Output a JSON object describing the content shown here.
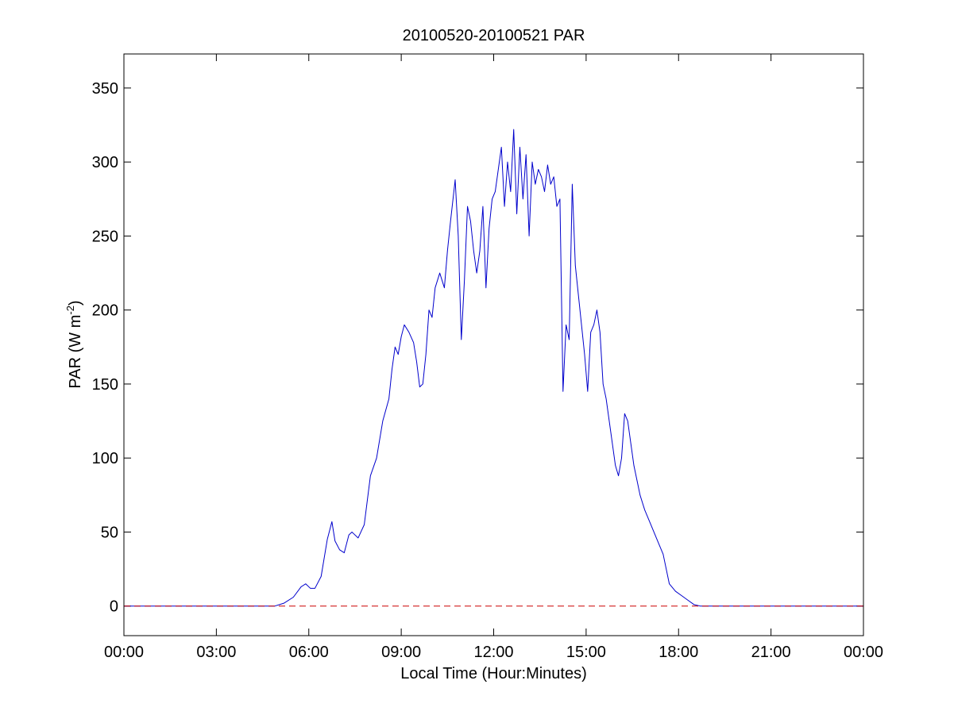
{
  "chart_data": {
    "type": "line",
    "title": "20100520-20100521 PAR",
    "xlabel": "Local Time (Hour:Minutes)",
    "ylabel": "PAR (W m",
    "ylabel_superscript": "-2",
    "ylabel_close": ")",
    "xlim": [
      0,
      24
    ],
    "ylim": [
      -20,
      373
    ],
    "x_ticks": [
      0,
      3,
      6,
      9,
      12,
      15,
      18,
      21,
      24
    ],
    "x_tick_labels": [
      "00:00",
      "03:00",
      "06:00",
      "09:00",
      "12:00",
      "15:00",
      "18:00",
      "21:00",
      "00:00"
    ],
    "y_ticks": [
      0,
      50,
      100,
      150,
      200,
      250,
      300,
      350
    ],
    "y_tick_labels": [
      "0",
      "50",
      "100",
      "150",
      "200",
      "250",
      "300",
      "350"
    ],
    "grid": false,
    "series": [
      {
        "color": "#0000cc",
        "style": "solid",
        "x_unit": "hours",
        "x": [
          0,
          4.9,
          5.2,
          5.5,
          5.75,
          5.9,
          6.05,
          6.2,
          6.4,
          6.6,
          6.75,
          6.85,
          7.0,
          7.15,
          7.3,
          7.4,
          7.6,
          7.8,
          8.0,
          8.2,
          8.4,
          8.6,
          8.7,
          8.8,
          8.9,
          9.0,
          9.1,
          9.25,
          9.4,
          9.5,
          9.6,
          9.7,
          9.8,
          9.9,
          10.0,
          10.1,
          10.25,
          10.4,
          10.5,
          10.6,
          10.75,
          10.85,
          10.95,
          11.05,
          11.15,
          11.25,
          11.35,
          11.45,
          11.55,
          11.65,
          11.75,
          11.85,
          11.95,
          12.05,
          12.15,
          12.25,
          12.35,
          12.45,
          12.55,
          12.65,
          12.75,
          12.85,
          12.95,
          13.05,
          13.15,
          13.25,
          13.35,
          13.45,
          13.55,
          13.65,
          13.75,
          13.85,
          13.95,
          14.05,
          14.15,
          14.25,
          14.35,
          14.45,
          14.55,
          14.65,
          14.75,
          14.85,
          14.95,
          15.05,
          15.15,
          15.25,
          15.35,
          15.45,
          15.55,
          15.65,
          15.75,
          15.85,
          15.95,
          16.05,
          16.15,
          16.25,
          16.35,
          16.45,
          16.55,
          16.65,
          16.75,
          16.9,
          17.1,
          17.3,
          17.5,
          17.7,
          17.9,
          18.1,
          18.3,
          18.5,
          18.7,
          18.9,
          19.1,
          24
        ],
        "y": [
          0,
          0,
          2,
          6,
          13,
          15,
          12,
          12,
          20,
          45,
          57,
          44,
          38,
          36,
          48,
          50,
          46,
          55,
          88,
          100,
          125,
          140,
          160,
          175,
          170,
          182,
          190,
          185,
          178,
          165,
          148,
          150,
          170,
          200,
          195,
          215,
          225,
          215,
          240,
          260,
          288,
          250,
          180,
          220,
          270,
          260,
          240,
          225,
          240,
          270,
          215,
          255,
          275,
          280,
          295,
          310,
          270,
          300,
          280,
          322,
          265,
          310,
          275,
          305,
          250,
          300,
          285,
          295,
          290,
          280,
          298,
          285,
          290,
          270,
          275,
          145,
          190,
          180,
          285,
          230,
          210,
          190,
          170,
          145,
          185,
          190,
          200,
          185,
          150,
          140,
          125,
          110,
          95,
          88,
          100,
          130,
          125,
          110,
          95,
          85,
          75,
          65,
          55,
          45,
          35,
          15,
          10,
          7,
          4,
          1,
          0,
          0,
          0,
          0
        ]
      },
      {
        "color": "#cc0000",
        "style": "dashed",
        "x": [
          0,
          24
        ],
        "y": [
          0,
          0
        ]
      }
    ]
  }
}
